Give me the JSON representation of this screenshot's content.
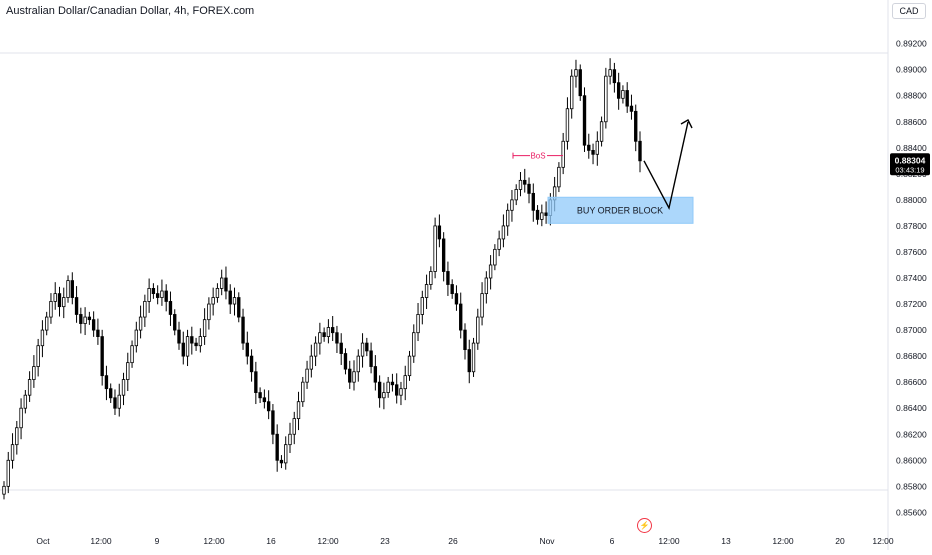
{
  "header": {
    "title": "Australian Dollar/Canadian Dollar, 4h, FOREX.com",
    "currency": "CAD"
  },
  "price_label": {
    "price": "0.88304",
    "countdown": "03:43:19"
  },
  "icons": {
    "events": "lightning-icon"
  },
  "colors": {
    "up": "#000000",
    "down": "#000000",
    "candle_up_fill": "#ffffff",
    "candle_down_fill": "#000000",
    "bos": "#e91e63",
    "order_block_fill": "#90caf9",
    "order_block_border": "#90caf9",
    "projection": "#000000",
    "price_label_bg": "#000000"
  },
  "annotations": {
    "bos_label": "BoS",
    "order_block_label": "BUY ORDER BLOCK",
    "bos_level": 0.8834,
    "order_block_top": 0.8802,
    "order_block_bottom": 0.8782
  },
  "chart_data": {
    "type": "candlestick",
    "title": "Australian Dollar/Canadian Dollar, 4h, FOREX.com",
    "xlabel": "",
    "ylabel": "",
    "ylim": [
      0.8548,
      0.8932
    ],
    "grid": false,
    "y_ticks": [
      "0.85600",
      "0.85800",
      "0.86000",
      "0.86200",
      "0.86400",
      "0.86600",
      "0.86800",
      "0.87000",
      "0.87200",
      "0.87400",
      "0.87600",
      "0.87800",
      "0.88000",
      "0.88200",
      "0.88400",
      "0.88600",
      "0.88800",
      "0.89000",
      "0.89200"
    ],
    "x_ticks": [
      "Oct",
      "12:00",
      "9",
      "12:00",
      "16",
      "12:00",
      "23",
      "26",
      "Nov",
      "6",
      "12:00",
      "13",
      "12:00",
      "20",
      "12:00"
    ],
    "series_close": [
      0.858,
      0.86,
      0.8612,
      0.8625,
      0.864,
      0.865,
      0.8662,
      0.8672,
      0.8688,
      0.87,
      0.871,
      0.8722,
      0.8728,
      0.8718,
      0.8725,
      0.8738,
      0.8725,
      0.8712,
      0.8705,
      0.871,
      0.8708,
      0.87,
      0.8695,
      0.8665,
      0.8655,
      0.8648,
      0.864,
      0.865,
      0.8662,
      0.8675,
      0.8688,
      0.87,
      0.871,
      0.8722,
      0.8732,
      0.8728,
      0.8725,
      0.873,
      0.8722,
      0.8712,
      0.87,
      0.869,
      0.868,
      0.8695,
      0.869,
      0.8688,
      0.8695,
      0.8708,
      0.872,
      0.8725,
      0.8732,
      0.874,
      0.873,
      0.872,
      0.8725,
      0.871,
      0.869,
      0.868,
      0.8668,
      0.8652,
      0.8648,
      0.8645,
      0.8638,
      0.862,
      0.86,
      0.8598,
      0.8612,
      0.862,
      0.8632,
      0.8645,
      0.866,
      0.867,
      0.868,
      0.869,
      0.8698,
      0.8695,
      0.8702,
      0.8698,
      0.869,
      0.8682,
      0.867,
      0.866,
      0.8668,
      0.868,
      0.869,
      0.8684,
      0.8672,
      0.866,
      0.8648,
      0.8652,
      0.866,
      0.8658,
      0.865,
      0.8655,
      0.8665,
      0.868,
      0.8698,
      0.8712,
      0.8725,
      0.8735,
      0.8745,
      0.878,
      0.877,
      0.8745,
      0.8735,
      0.8728,
      0.872,
      0.87,
      0.8685,
      0.8668,
      0.869,
      0.871,
      0.8728,
      0.874,
      0.875,
      0.8762,
      0.877,
      0.878,
      0.8792,
      0.88,
      0.8808,
      0.8815,
      0.8812,
      0.8805,
      0.8792,
      0.8785,
      0.879,
      0.8788,
      0.88,
      0.881,
      0.8825,
      0.8845,
      0.887,
      0.8895,
      0.89,
      0.888,
      0.8842,
      0.8838,
      0.8835,
      0.8845,
      0.886,
      0.8895,
      0.89,
      0.889,
      0.8878,
      0.8884,
      0.8872,
      0.8868,
      0.8845,
      0.883
    ]
  }
}
